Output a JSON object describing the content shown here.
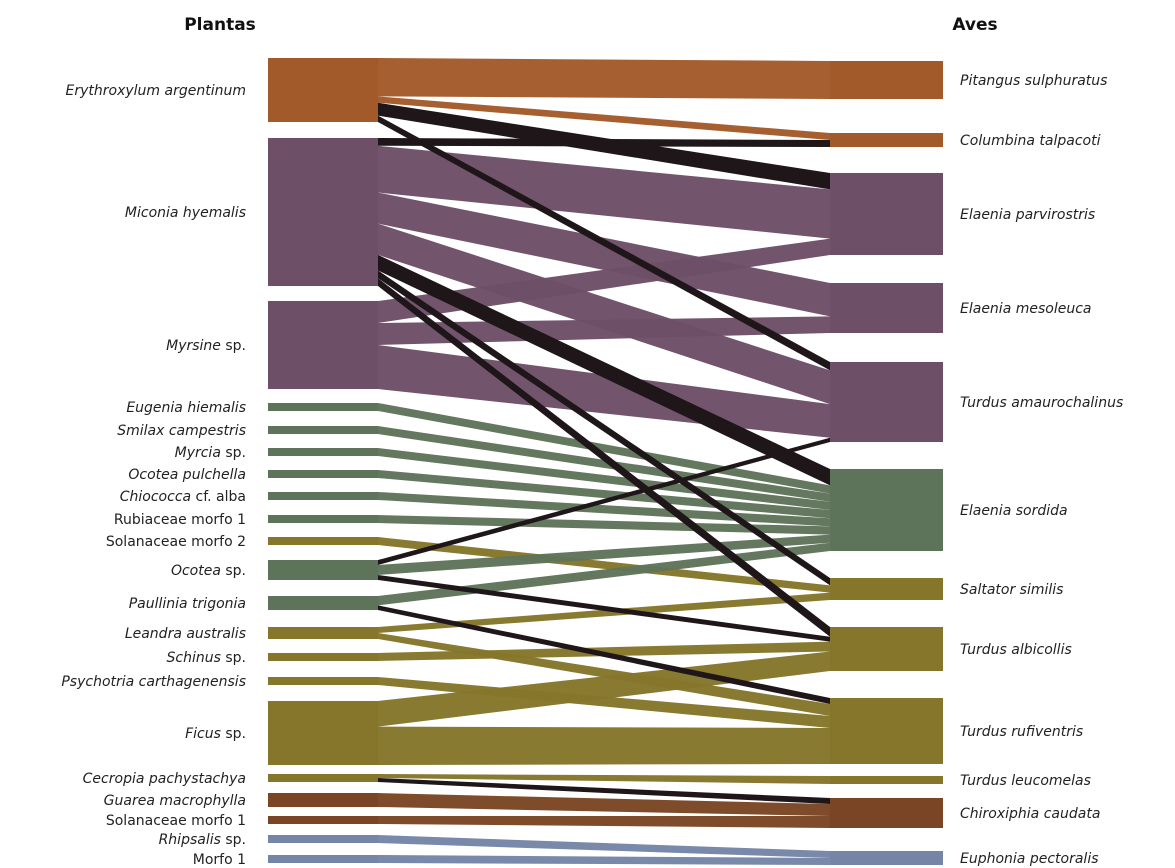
{
  "headers": {
    "plants": "Plantas",
    "birds": "Aves"
  },
  "colors": {
    "orange": "#a35a2a",
    "purple": "#6d4f68",
    "green": "#5e745a",
    "olive": "#85762b",
    "brown": "#7a4524",
    "slate": "#7585a6",
    "black": "#1f1619"
  },
  "plants": [
    {
      "key": "erythroxylum",
      "name": "Erythroxylum argentinum",
      "italic": "Erythroxylum argentinum",
      "rest": "",
      "color": "orange"
    },
    {
      "key": "miconia",
      "name": "Miconia hyemalis",
      "italic": "Miconia hyemalis",
      "rest": "",
      "color": "purple"
    },
    {
      "key": "myrsine",
      "name": "Myrsine sp.",
      "italic": "Myrsine",
      "rest": " sp.",
      "color": "purple"
    },
    {
      "key": "eugenia",
      "name": "Eugenia hiemalis",
      "italic": "Eugenia hiemalis",
      "rest": "",
      "color": "green"
    },
    {
      "key": "smilax",
      "name": "Smilax campestris",
      "italic": "Smilax campestris",
      "rest": "",
      "color": "green"
    },
    {
      "key": "myrcia",
      "name": "Myrcia sp.",
      "italic": "Myrcia",
      "rest": " sp.",
      "color": "green"
    },
    {
      "key": "ocoteap",
      "name": "Ocotea pulchella",
      "italic": "Ocotea pulchella",
      "rest": "",
      "color": "green"
    },
    {
      "key": "chiococca",
      "name": "Chiococca cf. alba",
      "italic": "Chiococca",
      "rest": " cf. alba",
      "color": "green"
    },
    {
      "key": "rubiaceae",
      "name": "Rubiaceae morfo 1",
      "italic": "",
      "rest": "Rubiaceae morfo 1",
      "color": "green"
    },
    {
      "key": "solanaceae2",
      "name": "Solanaceae morfo 2",
      "italic": "",
      "rest": "Solanaceae morfo 2",
      "color": "olive"
    },
    {
      "key": "ocotea",
      "name": "Ocotea sp.",
      "italic": "Ocotea",
      "rest": " sp.",
      "color": "green"
    },
    {
      "key": "paullinia",
      "name": "Paullinia trigonia",
      "italic": "Paullinia trigonia",
      "rest": "",
      "color": "green"
    },
    {
      "key": "leandra",
      "name": "Leandra australis",
      "italic": "Leandra australis",
      "rest": "",
      "color": "olive"
    },
    {
      "key": "schinus",
      "name": "Schinus sp.",
      "italic": "Schinus",
      "rest": " sp.",
      "color": "olive"
    },
    {
      "key": "psychotria",
      "name": "Psychotria carthagenensis",
      "italic": "Psychotria carthagenensis",
      "rest": "",
      "color": "olive"
    },
    {
      "key": "ficus",
      "name": "Ficus sp.",
      "italic": "Ficus",
      "rest": " sp.",
      "color": "olive"
    },
    {
      "key": "cecropia",
      "name": "Cecropia pachystachya",
      "italic": "Cecropia pachystachya",
      "rest": "",
      "color": "olive"
    },
    {
      "key": "guarea",
      "name": "Guarea macrophylla",
      "italic": "Guarea macrophylla",
      "rest": "",
      "color": "brown"
    },
    {
      "key": "solanaceae1",
      "name": "Solanaceae morfo 1",
      "italic": "",
      "rest": "Solanaceae morfo 1",
      "color": "brown"
    },
    {
      "key": "rhipsalis",
      "name": "Rhipsalis sp.",
      "italic": "Rhipsalis",
      "rest": " sp.",
      "color": "slate"
    },
    {
      "key": "morfo1",
      "name": "Morfo 1",
      "italic": "",
      "rest": "Morfo 1",
      "color": "slate"
    }
  ],
  "birds": [
    {
      "key": "pitangus",
      "name": "Pitangus sulphuratus",
      "color": "orange"
    },
    {
      "key": "columbina",
      "name": "Columbina talpacoti",
      "color": "orange"
    },
    {
      "key": "parvirostris",
      "name": "Elaenia parvirostris",
      "color": "purple"
    },
    {
      "key": "mesoleuca",
      "name": "Elaenia mesoleuca",
      "color": "purple"
    },
    {
      "key": "amaurochalinus",
      "name": "Turdus amaurochalinus",
      "color": "purple"
    },
    {
      "key": "sordida",
      "name": "Elaenia sordida",
      "color": "green"
    },
    {
      "key": "saltator",
      "name": "Saltator similis",
      "color": "olive"
    },
    {
      "key": "albicollis",
      "name": "Turdus albicollis",
      "color": "olive"
    },
    {
      "key": "rufiventris",
      "name": "Turdus rufiventris",
      "color": "olive"
    },
    {
      "key": "leucomelas",
      "name": "Turdus leucomelas",
      "color": "olive"
    },
    {
      "key": "chiroxiphia",
      "name": "Chiroxiphia caudata",
      "color": "brown"
    },
    {
      "key": "euphonia",
      "name": "Euphonia pectoralis",
      "color": "slate"
    }
  ],
  "links": [
    {
      "plant": "erythroxylum",
      "bird": "pitangus",
      "weight": 6,
      "color": "orange"
    },
    {
      "plant": "erythroxylum",
      "bird": "columbina",
      "weight": 1,
      "color": "orange"
    },
    {
      "plant": "erythroxylum",
      "bird": "parvirostris",
      "weight": 2,
      "color": "black"
    },
    {
      "plant": "erythroxylum",
      "bird": "amaurochalinus",
      "weight": 1,
      "color": "black"
    },
    {
      "plant": "miconia",
      "bird": "columbina",
      "weight": 1,
      "color": "black"
    },
    {
      "plant": "miconia",
      "bird": "parvirostris",
      "weight": 6,
      "color": "purple"
    },
    {
      "plant": "miconia",
      "bird": "mesoleuca",
      "weight": 4,
      "color": "purple"
    },
    {
      "plant": "miconia",
      "bird": "amaurochalinus",
      "weight": 4,
      "color": "purple"
    },
    {
      "plant": "miconia",
      "bird": "sordida",
      "weight": 2,
      "color": "black"
    },
    {
      "plant": "miconia",
      "bird": "saltator",
      "weight": 1,
      "color": "black"
    },
    {
      "plant": "miconia",
      "bird": "albicollis",
      "weight": 1,
      "color": "black"
    },
    {
      "plant": "myrsine",
      "bird": "parvirostris",
      "weight": 2,
      "color": "purple"
    },
    {
      "plant": "myrsine",
      "bird": "mesoleuca",
      "weight": 2,
      "color": "purple"
    },
    {
      "plant": "myrsine",
      "bird": "amaurochalinus",
      "weight": 4,
      "color": "purple"
    },
    {
      "plant": "eugenia",
      "bird": "sordida",
      "weight": 1,
      "color": "green"
    },
    {
      "plant": "smilax",
      "bird": "sordida",
      "weight": 1,
      "color": "green"
    },
    {
      "plant": "myrcia",
      "bird": "sordida",
      "weight": 1,
      "color": "green"
    },
    {
      "plant": "ocoteap",
      "bird": "sordida",
      "weight": 1,
      "color": "green"
    },
    {
      "plant": "chiococca",
      "bird": "sordida",
      "weight": 1,
      "color": "green"
    },
    {
      "plant": "rubiaceae",
      "bird": "sordida",
      "weight": 1,
      "color": "green"
    },
    {
      "plant": "solanaceae2",
      "bird": "saltator",
      "weight": 1,
      "color": "olive"
    },
    {
      "plant": "ocotea",
      "bird": "amaurochalinus",
      "weight": 0.5,
      "color": "black"
    },
    {
      "plant": "ocotea",
      "bird": "sordida",
      "weight": 1,
      "color": "green"
    },
    {
      "plant": "ocotea",
      "bird": "albicollis",
      "weight": 0.5,
      "color": "black"
    },
    {
      "plant": "paullinia",
      "bird": "sordida",
      "weight": 1,
      "color": "green"
    },
    {
      "plant": "paullinia",
      "bird": "rufiventris",
      "weight": 0.5,
      "color": "black"
    },
    {
      "plant": "leandra",
      "bird": "saltator",
      "weight": 1,
      "color": "olive"
    },
    {
      "plant": "leandra",
      "bird": "rufiventris",
      "weight": 1,
      "color": "olive"
    },
    {
      "plant": "schinus",
      "bird": "albicollis",
      "weight": 1,
      "color": "olive"
    },
    {
      "plant": "psychotria",
      "bird": "rufiventris",
      "weight": 1,
      "color": "olive"
    },
    {
      "plant": "ficus",
      "bird": "albicollis",
      "weight": 2,
      "color": "olive"
    },
    {
      "plant": "ficus",
      "bird": "rufiventris",
      "weight": 3,
      "color": "olive"
    },
    {
      "plant": "cecropia",
      "bird": "leucomelas",
      "weight": 0.5,
      "color": "olive"
    },
    {
      "plant": "cecropia",
      "bird": "chiroxiphia",
      "weight": 0.5,
      "color": "black"
    },
    {
      "plant": "guarea",
      "bird": "chiroxiphia",
      "weight": 1,
      "color": "brown"
    },
    {
      "plant": "solanaceae1",
      "bird": "chiroxiphia",
      "weight": 1,
      "color": "brown"
    },
    {
      "plant": "rhipsalis",
      "bird": "euphonia",
      "weight": 0.5,
      "color": "slate"
    },
    {
      "plant": "morfo1",
      "bird": "euphonia",
      "weight": 0.5,
      "color": "slate"
    }
  ]
}
